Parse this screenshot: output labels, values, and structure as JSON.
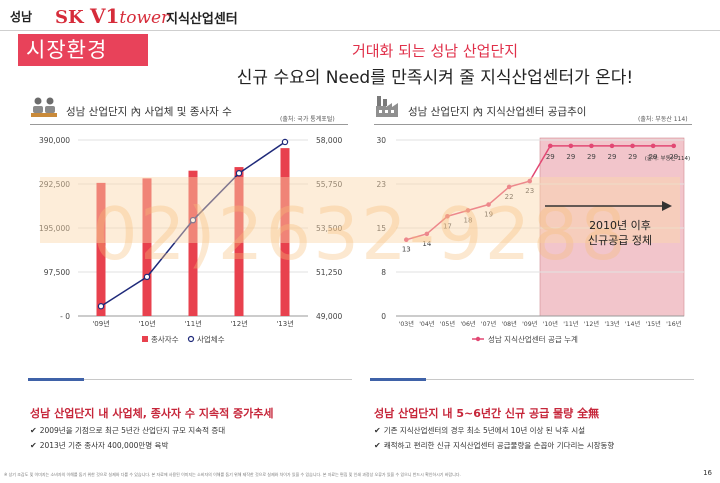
{
  "header": {
    "city": "성남",
    "brand_sk": "SK",
    "brand_v1": "V1",
    "brand_tower": "tower",
    "center": "지식산업센터"
  },
  "section_badge": "시장환경",
  "headline": {
    "line1": "거대화 되는 성남 산업단지",
    "line2": "신규 수요의 Need를 만족시켜 줄 지식산업센터가 온다!"
  },
  "watermark": "02)2632-9288",
  "colors": {
    "accent_red": "#d62c3a",
    "bar_red": "#e8414e",
    "line_navy": "#1f2a7a",
    "line_pink": "#e24873",
    "highlight_pink": "#e8a0a8",
    "summary_blue": "#3f62a8"
  },
  "left_panel": {
    "icon": "factory-workers-icon",
    "title": "성남 산업단지 內 사업체 및 종사자 수",
    "source": "(출처: 국가 통계포털)",
    "legend_bar": "종사자수",
    "legend_line": "사업체수"
  },
  "right_panel": {
    "icon": "factory-building-icon",
    "title": "성남 산업단지 內 지식산업센터 공급추이",
    "source": "(출처: 부동산 114)",
    "callout_line1": "2010년 이후",
    "callout_line2": "신규공급 정체",
    "inner_label": "(출처: 부동산 114)",
    "legend": "성남 지식산업센터 공급 누계"
  },
  "chart_data": [
    {
      "type": "bar",
      "categories": [
        "'09년",
        "'10년",
        "'11년",
        "'12년",
        "'13년"
      ],
      "series": [
        {
          "name": "종사자수",
          "axis": "left",
          "values": [
            295000,
            305000,
            322000,
            330000,
            372000
          ]
        },
        {
          "name": "사업체수",
          "type": "line",
          "axis": "right",
          "values": [
            49500,
            51000,
            53900,
            56300,
            57900
          ]
        }
      ],
      "y_left_ticks": [
        "390,000",
        "292,500",
        "195,000",
        "97,500",
        "- 0"
      ],
      "y_left_range": [
        0,
        390000
      ],
      "y_right_ticks": [
        "58,000",
        "55,750",
        "53,500",
        "51,250",
        "49,000"
      ],
      "y_right_range": [
        49000,
        58000
      ],
      "grid": true,
      "legend_position": "bottom"
    },
    {
      "type": "line",
      "categories": [
        "'03년",
        "'04년",
        "'05년",
        "'06년",
        "'07년",
        "'08년",
        "'09년",
        "'10년",
        "'11년",
        "'12년",
        "'13년",
        "'14년",
        "'15년",
        "'16년"
      ],
      "series": [
        {
          "name": "성남 지식산업센터 공급 누계",
          "values": [
            13,
            14,
            17,
            18,
            19,
            22,
            23,
            29,
            29,
            29,
            29,
            29,
            29,
            29
          ]
        }
      ],
      "data_labels": [
        "13",
        "14",
        "17",
        "18",
        "19",
        "22",
        "23",
        "29",
        "29",
        "29",
        "29",
        "29",
        "29",
        "29"
      ],
      "y_ticks": [
        "30",
        "23",
        "15",
        "8",
        "0"
      ],
      "ylim": [
        0,
        30
      ],
      "highlight_from": "'10년",
      "grid": true,
      "legend_position": "bottom"
    }
  ],
  "summary_left": {
    "heading": "성남 산업단지 내 사업체, 종사자 수 지속적 증가추세",
    "items": [
      "2009년을 기점으로 최근 5년간 산업단지 규모 지속적 증대",
      "2013년 기준 종사자 400,000만명 육박"
    ]
  },
  "summary_right": {
    "heading": "성남 산업단지 내 5~6년간 신규 공급 물량 全無",
    "items": [
      "기존 지식산업센터의 경우 최소 5년에서 10년 이상 된 낙후 시설",
      "쾌적하고 편리한 신규 지식산업센터 공급물량을 손꼽아 기다리는 시장동향"
    ]
  },
  "footnote": "※ 상기 조감도 및 이미지는 소비자의 이해를 돕기 위한 것으로 실제와 다를 수 있습니다. 본 자료에 사용된 이미지는 소비자의 이해를 돕기 위해 제작한 것으로 실제와 차이가 있을 수 있습니다. 본 자료는 편집 및 인쇄 과정상 오류가 있을 수 있으니 반드시 확인하시기 바랍니다.",
  "page_number": "16"
}
